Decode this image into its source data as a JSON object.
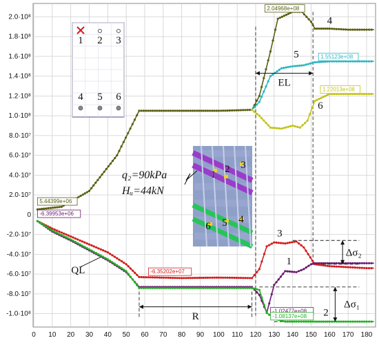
{
  "chart_data": {
    "type": "line",
    "title": "",
    "xlabel": "",
    "ylabel": "",
    "xlim": [
      0,
      185
    ],
    "ylim": [
      -110000000.0,
      210000000.0
    ],
    "x_ticks": [
      0,
      10,
      20,
      30,
      40,
      50,
      60,
      70,
      80,
      90,
      100,
      110,
      120,
      130,
      140,
      150,
      160,
      170,
      180
    ],
    "y_ticks": [
      {
        "value": 200000000.0,
        "label": "2.0·10⁸"
      },
      {
        "value": 180000000.0,
        "label": "1.8·10⁸"
      },
      {
        "value": 160000000.0,
        "label": "1.6·10⁸"
      },
      {
        "value": 140000000.0,
        "label": "1.4·10⁸"
      },
      {
        "value": 120000000.0,
        "label": "1.2·10⁸"
      },
      {
        "value": 100000000.0,
        "label": "1.0·10⁸"
      },
      {
        "value": 80000000.0,
        "label": "8.0·10⁷"
      },
      {
        "value": 60000000.0,
        "label": "6.0·10⁷"
      },
      {
        "value": 40000000.0,
        "label": "4.0·10⁷"
      },
      {
        "value": 20000000.0,
        "label": "2.0·10⁷"
      },
      {
        "value": 0,
        "label": "0"
      },
      {
        "value": -20000000.0,
        "label": "-2.0·10⁷"
      },
      {
        "value": -40000000.0,
        "label": "-4.0·10⁷"
      },
      {
        "value": -60000000.0,
        "label": "-6.0·10⁷"
      },
      {
        "value": -80000000.0,
        "label": "-8.0·10⁷"
      },
      {
        "value": -100000000.0,
        "label": "-1.0·10⁸"
      }
    ],
    "grid": true,
    "series": [
      {
        "name": "4",
        "color": "#5a5f12",
        "x": [
          2,
          15,
          30,
          45,
          57,
          80,
          100,
          118,
          122,
          128,
          132,
          140,
          145,
          150,
          152,
          160,
          170,
          180,
          184
        ],
        "y": [
          5400000.0,
          8000000.0,
          24000000.0,
          60000000.0,
          105000000.0,
          105000000.0,
          105000000.0,
          106000000.0,
          120000000.0,
          165000000.0,
          198000000.0,
          205000000.0,
          205000000.0,
          195000000.0,
          188000000.0,
          188000000.0,
          187000000.0,
          187000000.0,
          187000000.0
        ]
      },
      {
        "name": "5",
        "color": "#2cb6c2",
        "x": [
          118,
          122,
          128,
          134,
          140,
          146,
          152,
          160,
          170,
          180,
          184
        ],
        "y": [
          106000000.0,
          114000000.0,
          140000000.0,
          148000000.0,
          150000000.0,
          151000000.0,
          154000000.0,
          155000000.0,
          155000000.0,
          155000000.0,
          155000000.0
        ]
      },
      {
        "name": "6",
        "color": "#c3c218",
        "x": [
          118,
          122,
          128,
          134,
          140,
          144,
          148,
          152,
          160,
          170,
          180,
          184
        ],
        "y": [
          106000000.0,
          100000000.0,
          88000000.0,
          87000000.0,
          90000000.0,
          88000000.0,
          95000000.0,
          115000000.0,
          122000000.0,
          122000000.0,
          122000000.0,
          122000000.0
        ]
      },
      {
        "name": "3",
        "color": "#d21e1e",
        "x": [
          2,
          10,
          20,
          30,
          40,
          50,
          57,
          80,
          100,
          118,
          122,
          126,
          130,
          136,
          142,
          146,
          152,
          160,
          170,
          180,
          184
        ],
        "y": [
          -6400000.0,
          -14000000.0,
          -22000000.0,
          -30000000.0,
          -38000000.0,
          -50000000.0,
          -63000000.0,
          -64000000.0,
          -63500000.0,
          -64000000.0,
          -55000000.0,
          -32000000.0,
          -28000000.0,
          -29000000.0,
          -27000000.0,
          -33000000.0,
          -50000000.0,
          -52000000.0,
          -53000000.0,
          -54000000.0,
          -54000000.0
        ]
      },
      {
        "name": "1",
        "color": "#6a1b6e",
        "x": [
          2,
          10,
          20,
          30,
          40,
          50,
          57,
          80,
          100,
          118,
          122,
          126,
          130,
          136,
          142,
          146,
          150,
          152,
          160,
          170,
          180,
          184
        ],
        "y": [
          -6400000.0,
          -17000000.0,
          -26000000.0,
          -36000000.0,
          -46000000.0,
          -58000000.0,
          -73000000.0,
          -73000000.0,
          -73000000.0,
          -73000000.0,
          -81000000.0,
          -99000000.0,
          -71000000.0,
          -57000000.0,
          -58000000.0,
          -55000000.0,
          -50000000.0,
          -49000000.0,
          -49000000.0,
          -49000000.0,
          -49000000.0,
          -49000000.0
        ]
      },
      {
        "name": "2",
        "color": "#26b026",
        "x": [
          2,
          10,
          20,
          30,
          40,
          50,
          57,
          80,
          100,
          118,
          122,
          126,
          130,
          136,
          142,
          146,
          152,
          160,
          170,
          180,
          184
        ],
        "y": [
          -6400000.0,
          -16000000.0,
          -25000000.0,
          -35000000.0,
          -45000000.0,
          -57000000.0,
          -74000000.0,
          -74000000.0,
          -74000000.0,
          -74000000.0,
          -76000000.0,
          -99000000.0,
          -105000000.0,
          -108000000.0,
          -108000000.0,
          -108000000.0,
          -108000000.0,
          -108000000.0,
          -108000000.0,
          -108000000.0,
          -108000000.0
        ]
      }
    ],
    "callouts": [
      {
        "text": "2.04968e+08",
        "x": 125,
        "y": 206000000.0,
        "color": "#5a5f12"
      },
      {
        "text": "1.55123e+08",
        "x": 154,
        "y": 157000000.0,
        "color": "#2cb6c2"
      },
      {
        "text": "1.22013e+08",
        "x": 155,
        "y": 124000000.0,
        "color": "#c3c218"
      },
      {
        "text": "5.44399e+06",
        "x": 2,
        "y": 11000000.0,
        "color": "#5a5f12"
      },
      {
        "text": "-6.39953e+06",
        "x": 2,
        "y": -1500000.0,
        "color": "#6a1b6e"
      },
      {
        "text": "-6.35202e+07",
        "x": 62,
        "y": -60000000.0,
        "color": "#d21e1e"
      },
      {
        "text": "-1.02477e+08",
        "x": 128,
        "y": -100000000.0,
        "color": "#6a1b6e"
      },
      {
        "text": "-1.08137e+08",
        "x": 128,
        "y": -105000000.0,
        "color": "#26b026"
      }
    ],
    "series_labels": [
      {
        "text": "4",
        "x": 160,
        "y": 193000000.0
      },
      {
        "text": "5",
        "x": 142,
        "y": 159000000.0
      },
      {
        "text": "6",
        "x": 155,
        "y": 107000000.0
      },
      {
        "text": "3",
        "x": 133,
        "y": -22000000.0
      },
      {
        "text": "1",
        "x": 138,
        "y": -50000000.0
      },
      {
        "text": "2",
        "x": 158,
        "y": -102000000.0
      }
    ],
    "annotations": {
      "EL": "EL",
      "R": "R",
      "QL": "QL",
      "delta_sigma_1": "Δσ₁",
      "delta_sigma_2": "Δσ₂",
      "load_q": "q₂=90kPa",
      "load_h": "Hᵤ=44kN"
    },
    "legend_panel": {
      "top_labels": [
        "1",
        "2",
        "3"
      ],
      "bottom_labels": [
        "4",
        "5",
        "6"
      ]
    },
    "inset_photo_labels": [
      "1",
      "2",
      "3",
      "6",
      "5",
      "4"
    ]
  }
}
